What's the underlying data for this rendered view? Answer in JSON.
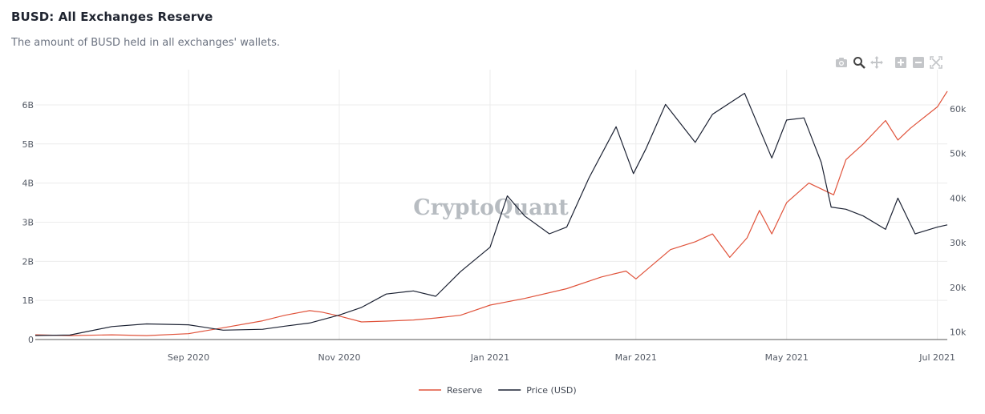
{
  "title": "BUSD: All Exchanges Reserve",
  "subtitle": "The amount of BUSD held in all exchanges' wallets.",
  "watermark": "CryptoQuant",
  "toolbar": {
    "items": [
      {
        "name": "camera-icon"
      },
      {
        "name": "zoom-icon"
      },
      {
        "name": "pan-icon"
      },
      {
        "name": "zoom-in-icon"
      },
      {
        "name": "zoom-out-icon"
      },
      {
        "name": "autoscale-icon"
      }
    ]
  },
  "colors": {
    "reserve": "#e0533b",
    "price": "#1c2233",
    "grid": "#ececec",
    "axis": "#555555"
  },
  "chart_data": {
    "type": "line",
    "x_ticks": [
      "Sep 2020",
      "Nov 2020",
      "Jan 2021",
      "Mar 2021",
      "May 2021",
      "Jul 2021"
    ],
    "x_tick_dates": [
      "2020-09-01",
      "2020-11-01",
      "2021-01-01",
      "2021-03-01",
      "2021-05-01",
      "2021-07-01"
    ],
    "x_range": [
      "2020-07-01",
      "2021-07-05"
    ],
    "y_left": {
      "ticks": [
        "0",
        "1B",
        "2B",
        "3B",
        "4B",
        "5B",
        "6B"
      ],
      "tick_values": [
        0,
        1,
        2,
        3,
        4,
        5,
        6
      ],
      "unit": "B",
      "range": [
        0,
        6.9
      ]
    },
    "y_right": {
      "ticks": [
        "10k",
        "20k",
        "30k",
        "40k",
        "50k",
        "60k"
      ],
      "tick_values": [
        10,
        20,
        30,
        40,
        50,
        60
      ],
      "unit": "k",
      "range": [
        8.3,
        68.8
      ]
    },
    "grid": true,
    "legend_position": "bottom-center",
    "series": [
      {
        "name": "Reserve",
        "axis": "left",
        "x": [
          "2020-07-01",
          "2020-07-15",
          "2020-08-01",
          "2020-08-15",
          "2020-09-01",
          "2020-09-15",
          "2020-10-01",
          "2020-10-10",
          "2020-10-20",
          "2020-10-25",
          "2020-11-01",
          "2020-11-10",
          "2020-11-20",
          "2020-12-01",
          "2020-12-10",
          "2020-12-20",
          "2021-01-01",
          "2021-01-15",
          "2021-02-01",
          "2021-02-15",
          "2021-02-25",
          "2021-03-01",
          "2021-03-15",
          "2021-03-25",
          "2021-04-01",
          "2021-04-08",
          "2021-04-15",
          "2021-04-20",
          "2021-04-25",
          "2021-05-01",
          "2021-05-10",
          "2021-05-20",
          "2021-05-25",
          "2021-06-01",
          "2021-06-10",
          "2021-06-15",
          "2021-06-20",
          "2021-07-01",
          "2021-07-05"
        ],
        "values": [
          0.12,
          0.1,
          0.12,
          0.1,
          0.15,
          0.3,
          0.48,
          0.62,
          0.74,
          0.7,
          0.6,
          0.45,
          0.47,
          0.5,
          0.55,
          0.62,
          0.88,
          1.05,
          1.3,
          1.6,
          1.75,
          1.55,
          2.3,
          2.5,
          2.7,
          2.1,
          2.6,
          3.3,
          2.7,
          3.5,
          4.0,
          3.7,
          4.6,
          5.0,
          5.6,
          5.1,
          5.4,
          5.95,
          6.35
        ]
      },
      {
        "name": "Price (USD)",
        "axis": "right",
        "x": [
          "2020-07-01",
          "2020-07-15",
          "2020-08-01",
          "2020-08-15",
          "2020-09-01",
          "2020-09-15",
          "2020-10-01",
          "2020-10-10",
          "2020-10-20",
          "2020-11-01",
          "2020-11-10",
          "2020-11-20",
          "2020-12-01",
          "2020-12-10",
          "2020-12-20",
          "2021-01-01",
          "2021-01-08",
          "2021-01-15",
          "2021-01-25",
          "2021-02-01",
          "2021-02-10",
          "2021-02-21",
          "2021-02-28",
          "2021-03-05",
          "2021-03-13",
          "2021-03-25",
          "2021-04-01",
          "2021-04-14",
          "2021-04-25",
          "2021-05-01",
          "2021-05-08",
          "2021-05-15",
          "2021-05-19",
          "2021-05-25",
          "2021-06-01",
          "2021-06-10",
          "2021-06-15",
          "2021-06-22",
          "2021-07-01",
          "2021-07-05"
        ],
        "values": [
          9.2,
          9.3,
          11.2,
          11.8,
          11.6,
          10.4,
          10.6,
          11.3,
          12.0,
          13.8,
          15.5,
          18.5,
          19.2,
          18.0,
          23.5,
          29.0,
          40.5,
          36.0,
          32.0,
          33.5,
          44.5,
          56.0,
          45.5,
          51.0,
          61.0,
          52.5,
          58.8,
          63.5,
          49.0,
          57.5,
          58.0,
          48.0,
          38.0,
          37.5,
          36.0,
          33.0,
          40.0,
          32.0,
          33.5,
          34.0
        ]
      }
    ]
  }
}
